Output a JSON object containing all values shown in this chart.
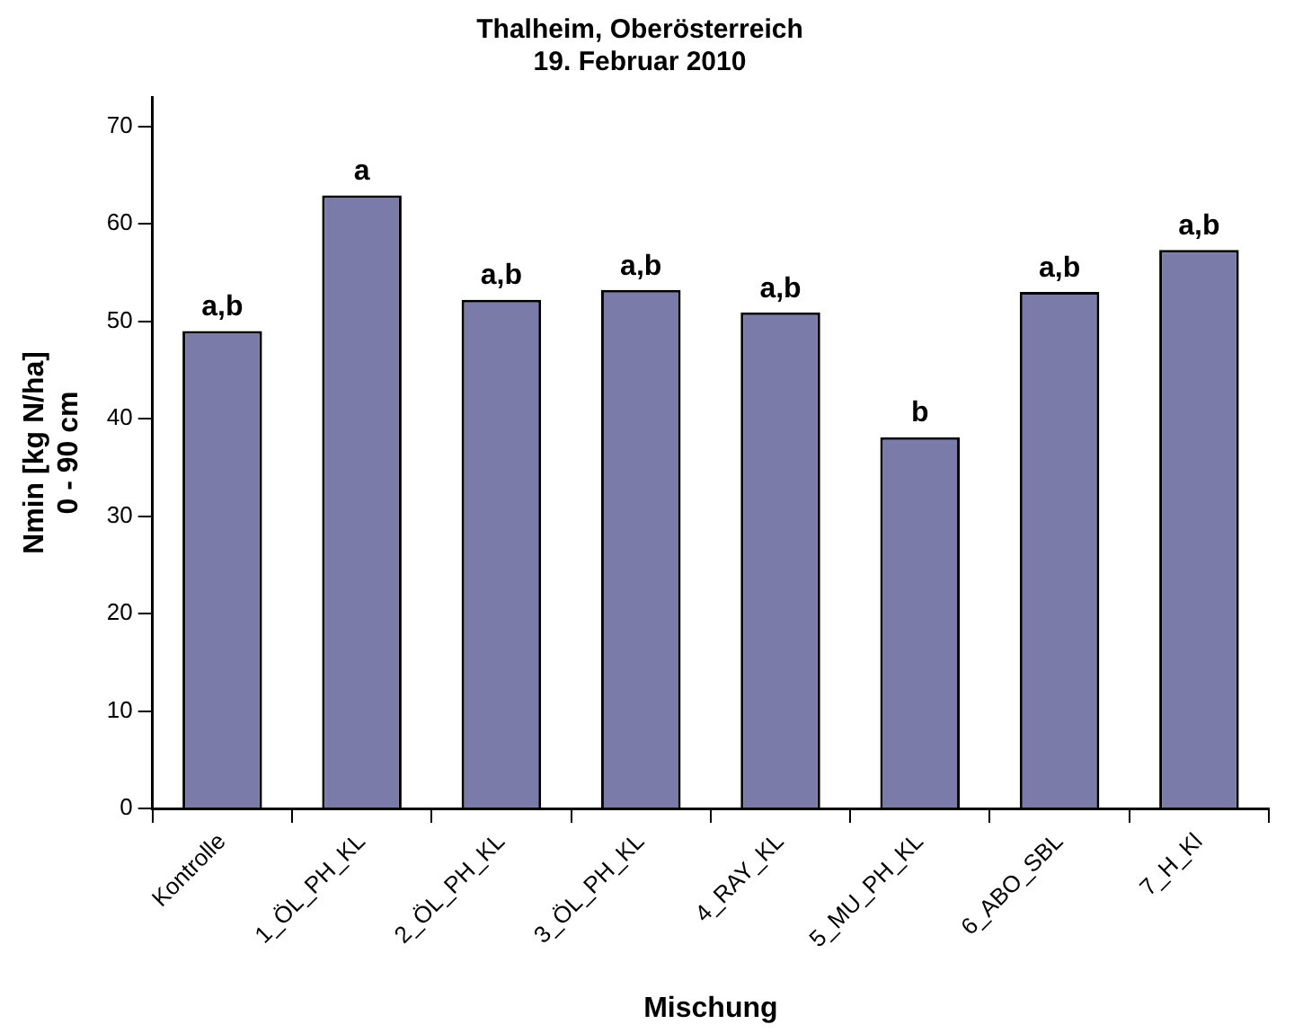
{
  "chart_data": {
    "type": "bar",
    "title": "Thalheim, Oberösterreich",
    "subtitle": "19. Februar 2010",
    "xlabel": "Mischung",
    "ylabel": "Nmin [kg N/ha]\n0 - 90 cm",
    "categories": [
      "Kontrolle",
      "1_ÖL_PH_KL",
      "2_ÖL_PH_KL",
      "3_ÖL_PH_KL",
      "4_RAY_KL",
      "5_MU_PH_KL",
      "6_ABO_SBL",
      "7_H_Kl"
    ],
    "values": [
      49.0,
      62.9,
      52.2,
      53.2,
      50.9,
      38.1,
      53.0,
      57.3
    ],
    "color": "#7a7ba8",
    "ylim": [
      0,
      73
    ],
    "yticks": [
      0,
      10,
      20,
      30,
      40,
      50,
      60,
      70
    ],
    "grid": false,
    "legend": false,
    "annotations": [
      {
        "text": "a,b",
        "x": "Kontrolle",
        "y": 49.0
      },
      {
        "text": "a",
        "x": "1_ÖL_PH_KL",
        "y": 62.9
      },
      {
        "text": "a,b",
        "x": "2_ÖL_PH_KL",
        "y": 52.2
      },
      {
        "text": "a,b",
        "x": "3_ÖL_PH_KL",
        "y": 53.2
      },
      {
        "text": "a,b",
        "x": "4_RAY_KL",
        "y": 50.9
      },
      {
        "text": "b",
        "x": "5_MU_PH_KL",
        "y": 38.1
      },
      {
        "text": "a,b",
        "x": "6_ABO_SBL",
        "y": 53.0
      },
      {
        "text": "a,b",
        "x": "7_H_Kl",
        "y": 57.3
      }
    ]
  }
}
